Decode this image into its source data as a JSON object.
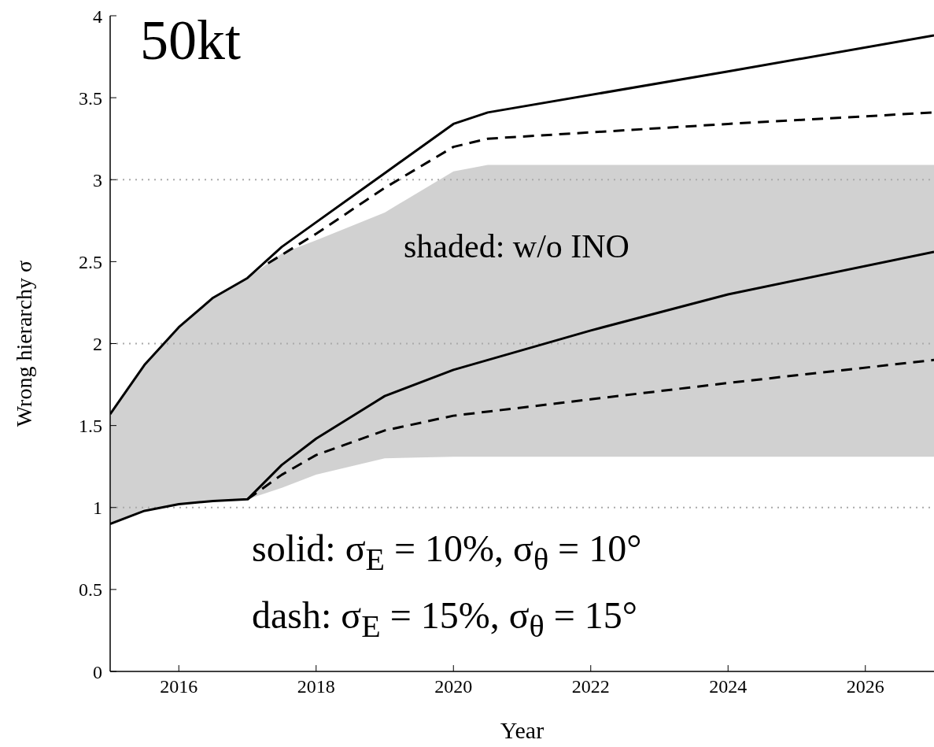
{
  "chart_data": {
    "type": "line",
    "xlabel": "Year",
    "ylabel": "Wrong hierarchy σ",
    "xlim": [
      2015,
      2027
    ],
    "xticks": [
      2016,
      2018,
      2020,
      2022,
      2024,
      2026
    ],
    "ylim": [
      0,
      4
    ],
    "yticks": [
      0,
      0.5,
      1,
      1.5,
      2,
      2.5,
      3,
      3.5,
      4
    ],
    "series": [
      {
        "color": "#000000",
        "line_style": "solid",
        "x": [
          2015,
          2015.5,
          2016,
          2016.5,
          2017,
          2017.5,
          2018,
          2019,
          2020,
          2020.5,
          2024,
          2027
        ],
        "values": [
          1.57,
          1.87,
          2.1,
          2.28,
          2.4,
          2.59,
          2.74,
          3.04,
          3.34,
          3.41,
          3.66,
          3.88
        ],
        "lower": [
          0.9,
          0.99,
          1.02,
          1.04,
          1.05,
          1.12,
          1.2,
          1.3,
          1.31,
          1.31,
          1.31,
          1.31
        ],
        "upper": [
          1.57,
          1.87,
          2.1,
          2.28,
          2.4,
          2.55,
          2.63,
          2.8,
          3.05,
          3.09,
          3.09,
          3.09
        ]
      },
      {
        "color": "#000000",
        "line_style": "dashed",
        "x": [
          2017.3,
          2018,
          2019,
          2020,
          2020.5,
          2024,
          2027
        ],
        "values": [
          2.49,
          2.67,
          2.95,
          3.2,
          3.25,
          3.34,
          3.41
        ]
      },
      {
        "color": "#000000",
        "line_style": "solid",
        "x": [
          2015,
          2015.5,
          2016,
          2016.5,
          2017,
          2017.5,
          2018,
          2019,
          2020,
          2022,
          2024,
          2027
        ],
        "values": [
          0.9,
          0.98,
          1.02,
          1.04,
          1.05,
          1.26,
          1.42,
          1.68,
          1.84,
          2.08,
          2.3,
          2.56
        ]
      },
      {
        "color": "#000000",
        "line_style": "dashed",
        "x": [
          2017,
          2017.5,
          2018,
          2019,
          2020,
          2022,
          2024,
          2027
        ],
        "values": [
          1.05,
          1.2,
          1.32,
          1.47,
          1.56,
          1.66,
          1.76,
          1.9
        ]
      }
    ],
    "ref_lines": [
      {
        "axis": "y",
        "value": 1,
        "color": "#aaaaaa",
        "line_style": "dotted"
      },
      {
        "axis": "y",
        "value": 2,
        "color": "#aaaaaa",
        "line_style": "dotted"
      },
      {
        "axis": "y",
        "value": 3,
        "color": "#aaaaaa",
        "line_style": "dotted"
      }
    ],
    "annotations": [
      "50kt",
      "shaded: w/o INO",
      "solid: σ$_{E}$ = 10%, σ$_{θ}$ = 10°",
      "dash: σ$_{E}$ = 15%, σ$_{θ}$ = 15°"
    ]
  }
}
